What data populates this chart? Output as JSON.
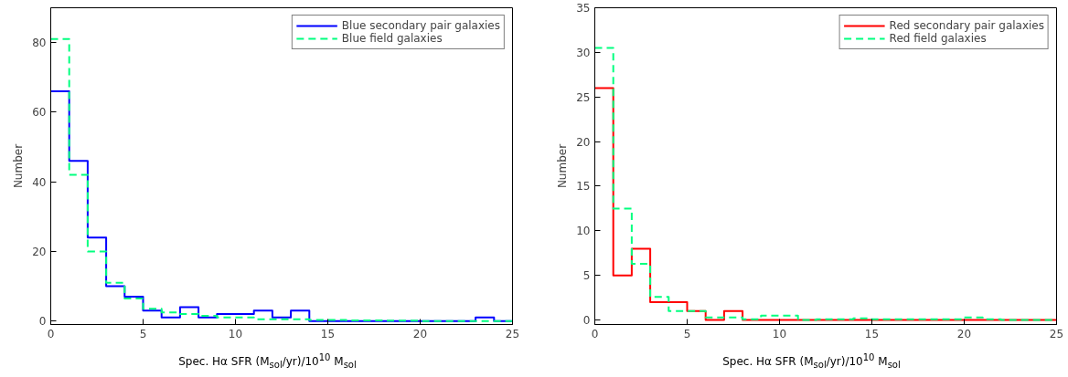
{
  "chart_data": [
    {
      "type": "histogram",
      "xlabel": "Spec. Hα SFR (M$_{sol}$/yr)/10$^{10}$ M$_{sol}$",
      "ylabel": "Number",
      "bins": [
        0,
        1,
        2,
        3,
        4,
        5,
        6,
        7,
        8,
        9,
        10,
        11,
        12,
        13,
        14,
        15,
        16,
        17,
        18,
        19,
        20,
        21,
        22,
        23,
        24,
        25
      ],
      "xlim": [
        0,
        25
      ],
      "xticks": [
        0,
        5,
        10,
        15,
        20,
        25
      ],
      "ylim": [
        -1,
        90
      ],
      "yticks": [
        0,
        20,
        40,
        60,
        80
      ],
      "legend": "top right",
      "series": [
        {
          "name": "Blue secondary pair galaxies",
          "color": "#0000ff",
          "line_style": "solid",
          "values": [
            66,
            46,
            24,
            10,
            7,
            3,
            1,
            4,
            1,
            2,
            2,
            3,
            1,
            3,
            0,
            0,
            0,
            0,
            0,
            0,
            0,
            0,
            0,
            1,
            0
          ]
        },
        {
          "name": "Blue field galaxies",
          "color": "#00ff7f",
          "line_style": "dashed",
          "values": [
            81,
            42,
            20,
            11,
            6.5,
            3.5,
            2.5,
            2,
            1.5,
            1,
            1,
            0.5,
            0.5,
            0.5,
            0.3,
            0.3,
            0.2,
            0.2,
            0.1,
            0.1,
            0,
            0,
            0,
            0,
            0
          ]
        }
      ]
    },
    {
      "type": "histogram",
      "xlabel": "Spec. Hα SFR (M$_{sol}$/yr)/10$^{10}$ M$_{sol}$",
      "ylabel": "Number",
      "bins": [
        0,
        1,
        2,
        3,
        4,
        5,
        6,
        7,
        8,
        9,
        10,
        11,
        12,
        13,
        14,
        15,
        16,
        17,
        18,
        19,
        20,
        21,
        22,
        23,
        24,
        25
      ],
      "xlim": [
        0,
        25
      ],
      "xticks": [
        0,
        5,
        10,
        15,
        20,
        25
      ],
      "ylim": [
        -0.5,
        35
      ],
      "yticks": [
        0,
        5,
        10,
        15,
        20,
        25,
        30,
        35
      ],
      "legend": "top right",
      "series": [
        {
          "name": "Red secondary pair galaxies",
          "color": "#ff0000",
          "line_style": "solid",
          "values": [
            26,
            5,
            8,
            2,
            2,
            1,
            0,
            1,
            0,
            0,
            0,
            0,
            0,
            0,
            0,
            0,
            0,
            0,
            0,
            0,
            0,
            0,
            0,
            0,
            0
          ]
        },
        {
          "name": "Red field galaxies",
          "color": "#00ff7f",
          "line_style": "dashed",
          "values": [
            30.5,
            12.5,
            6.3,
            2.6,
            1,
            1,
            0.3,
            0.3,
            0.1,
            0.5,
            0.5,
            0,
            0.1,
            0.1,
            0.2,
            0.1,
            0.1,
            0.1,
            0.1,
            0.1,
            0.3,
            0.1,
            0,
            0,
            0
          ]
        }
      ]
    }
  ]
}
